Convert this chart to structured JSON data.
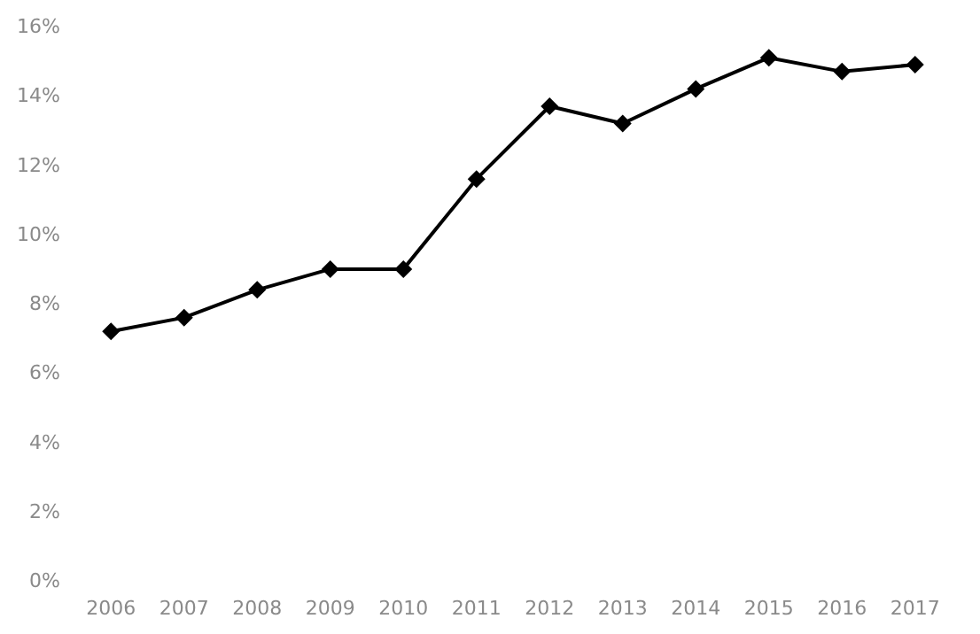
{
  "chart_data": {
    "type": "line",
    "categories": [
      "2006",
      "2007",
      "2008",
      "2009",
      "2010",
      "2011",
      "2012",
      "2013",
      "2014",
      "2015",
      "2016",
      "2017"
    ],
    "series": [
      {
        "color": "#000000",
        "values": [
          7.2,
          7.6,
          8.4,
          9.0,
          9.0,
          11.6,
          13.7,
          13.2,
          14.2,
          15.1,
          14.7,
          14.9
        ]
      }
    ],
    "ylim": [
      0,
      16
    ],
    "yticks": [
      {
        "value": 0,
        "label": "0%"
      },
      {
        "value": 2,
        "label": "2%"
      },
      {
        "value": 4,
        "label": "4%"
      },
      {
        "value": 6,
        "label": "6%"
      },
      {
        "value": 8,
        "label": "8%"
      },
      {
        "value": 10,
        "label": "10%"
      },
      {
        "value": 12,
        "label": "12%"
      },
      {
        "value": 14,
        "label": "14%"
      },
      {
        "value": 16,
        "label": "16%"
      }
    ],
    "grid": false,
    "marker": "diamond",
    "line_style": "solid"
  }
}
